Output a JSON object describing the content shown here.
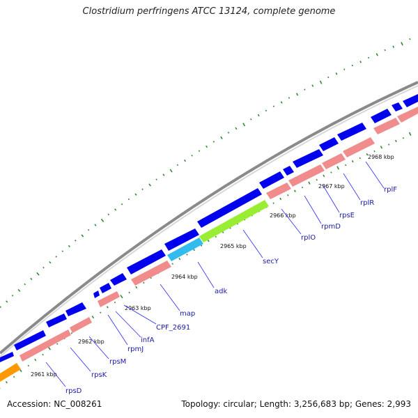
{
  "title": "Clostridium perfringens ATCC 13124, complete genome",
  "footer": {
    "accession": "Accession: NC_008261",
    "summary": "Topology: circular; Length: 3,256,683 bp; Genes: 2,993"
  },
  "colors": {
    "backbone": "#8a8a8a",
    "forward_strand": "#0000ee",
    "reverse_strand": "#f08c8c",
    "highlight_cyan": "#33bbee",
    "highlight_green": "#99ee33",
    "highlight_orange": "#ff9900",
    "gc_ticks": "#338833",
    "gene_label": "#1a1aa8"
  },
  "kbp_ticks": [
    "2961 kbp",
    "2962 kbp",
    "2963 kbp",
    "2964 kbp",
    "2965 kbp",
    "2966 kbp",
    "2967 kbp",
    "2968 kbp"
  ],
  "genes": [
    "rpsD",
    "rpsK",
    "rpsM",
    "rpmJ",
    "infA",
    "CPF_2691",
    "map",
    "adk",
    "secY",
    "rplO",
    "rpmD",
    "rpsE",
    "rplR",
    "rplF"
  ]
}
